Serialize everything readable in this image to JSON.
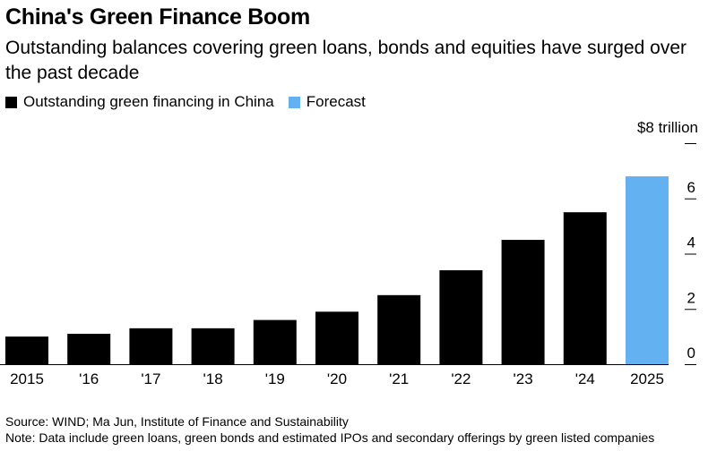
{
  "header": {
    "title": "China's Green Finance Boom",
    "subtitle": "Outstanding balances covering green loans, bonds and equities have surged over the past decade"
  },
  "legend": [
    {
      "label": "Outstanding green financing in China",
      "color": "#000000"
    },
    {
      "label": "Forecast",
      "color": "#64b1f2"
    }
  ],
  "chart_data": {
    "type": "bar",
    "categories": [
      "2015",
      "'16",
      "'17",
      "'18",
      "'19",
      "'20",
      "'21",
      "'22",
      "'23",
      "'24",
      "2025"
    ],
    "series": [
      {
        "name": "Outstanding green financing in China",
        "values": [
          1.0,
          1.1,
          1.3,
          1.3,
          1.6,
          1.9,
          2.5,
          3.4,
          4.5,
          5.5,
          null
        ],
        "color": "#000000"
      },
      {
        "name": "Forecast",
        "values": [
          null,
          null,
          null,
          null,
          null,
          null,
          null,
          null,
          null,
          null,
          6.8
        ],
        "color": "#64b1f2"
      }
    ],
    "ylim": [
      0,
      8
    ],
    "y_ticks": [
      0,
      2,
      4,
      6,
      8
    ],
    "y_tick_labels": [
      "0",
      "2",
      "4",
      "6",
      ""
    ],
    "unit_label": "$8 trillion",
    "y_axis_side": "right",
    "grid": false
  },
  "footer": {
    "source": "Source: WIND; Ma Jun, Institute of Finance and Sustainability",
    "note": "Note: Data include green loans, green bonds and estimated IPOs and secondary offerings by green listed companies"
  }
}
